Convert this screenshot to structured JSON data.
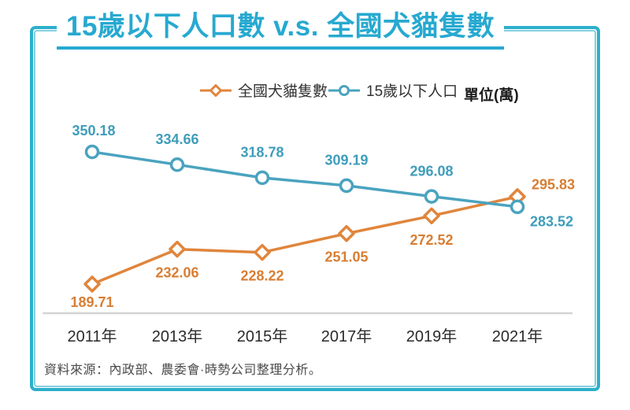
{
  "page_title": "15歲以下人口數 v.s. 全國犬貓隻數",
  "legend": {
    "items": [
      {
        "label": "全國犬貓隻數",
        "marker": "diamond",
        "color": "#E0853C"
      },
      {
        "label": "15歲以下人口",
        "marker": "circle",
        "color": "#4AA3BF"
      }
    ],
    "unit_label": "單位(萬)"
  },
  "source_note": "資料來源：內政部、農委會·時勢公司整理分析。",
  "colors": {
    "title": "#27A9D0",
    "frame_outer": "#2CAFCB",
    "frame_inner": "#82D0DF",
    "axis_line": "#D4D4D4",
    "x_tick_text": "#2B2B2B",
    "series_dogs_cats": "#E0853C",
    "series_population": "#4AA3BF"
  },
  "chart_data": {
    "type": "line",
    "title": "15歲以下人口數 v.s. 全國犬貓隻數",
    "unit": "單位(萬)",
    "categories": [
      "2011年",
      "2013年",
      "2015年",
      "2017年",
      "2019年",
      "2021年"
    ],
    "series": [
      {
        "name": "全國犬貓隻數",
        "marker": "diamond",
        "color": "#E0853C",
        "label_color": "#D87E33",
        "values": [
          189.71,
          232.06,
          228.22,
          251.05,
          272.52,
          295.83
        ]
      },
      {
        "name": "15歲以下人口",
        "marker": "circle",
        "color": "#4AA3BF",
        "label_color": "#3F9DBA",
        "values": [
          350.18,
          334.66,
          318.78,
          309.19,
          296.08,
          283.52
        ]
      }
    ],
    "xlabel": "",
    "ylabel": "",
    "ylim": [
      150,
      360
    ],
    "grid": false,
    "legend_position": "top"
  }
}
